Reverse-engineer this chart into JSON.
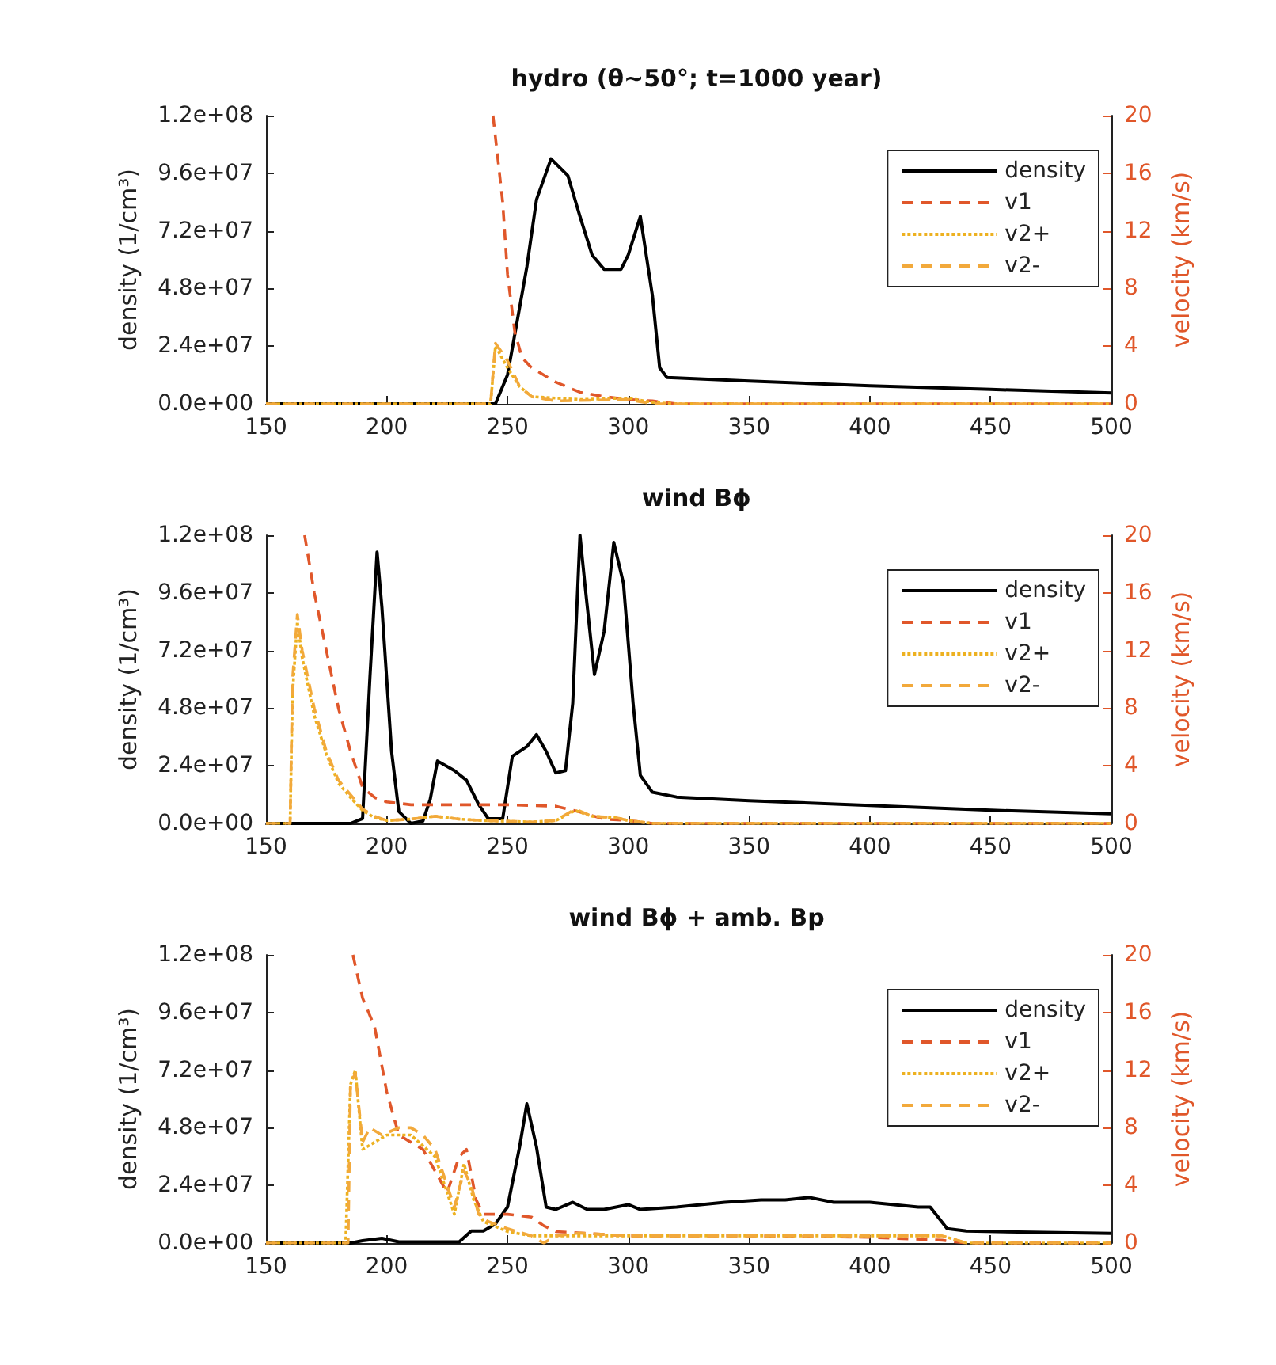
{
  "chart_data": [
    {
      "type": "line",
      "title": "hydro (θ~50°; t=1000 year)",
      "ylabel": "density (1/cm³)",
      "y2label": "velocity (km/s)",
      "xlim": [
        150,
        500
      ],
      "xticks": [
        150,
        200,
        250,
        300,
        350,
        400,
        450,
        500
      ],
      "ylim": [
        0,
        120000000
      ],
      "yticks": [
        {
          "value": 0,
          "label": "0.0e+00"
        },
        {
          "value": 24000000,
          "label": "2.4e+07"
        },
        {
          "value": 48000000,
          "label": "4.8e+07"
        },
        {
          "value": 72000000,
          "label": "7.2e+07"
        },
        {
          "value": 96000000,
          "label": "9.6e+07"
        },
        {
          "value": 120000000,
          "label": "1.2e+08"
        }
      ],
      "y2lim": [
        0,
        20
      ],
      "y2ticks": [
        0,
        4,
        8,
        12,
        16,
        20
      ],
      "legend": "top right",
      "marker": "none",
      "series": [
        {
          "name": "density",
          "color": "#000000",
          "line_style": "solid",
          "x": [
            150,
            245,
            250,
            255,
            258,
            262,
            268,
            275,
            280,
            285,
            290,
            297,
            300,
            305,
            310,
            313,
            316,
            350,
            400,
            450,
            500
          ],
          "values": [
            0,
            0,
            12000000,
            40000000,
            57000000,
            85000000,
            102000000,
            95000000,
            78000000,
            62000000,
            56000000,
            56000000,
            62000000,
            78000000,
            45000000,
            15000000,
            11000000,
            9500000,
            7500000,
            6000000,
            4500000
          ]
        },
        {
          "name": "v1",
          "color": "#e0572a",
          "line_style": "dashed",
          "axis": "y2",
          "x": [
            244,
            248,
            250,
            253,
            256,
            260,
            270,
            280,
            290,
            300,
            310,
            320,
            500
          ],
          "values": [
            20,
            14,
            9,
            5,
            3.2,
            2.5,
            1.5,
            0.8,
            0.5,
            0.3,
            0.2,
            0,
            0
          ]
        },
        {
          "name": "v2+",
          "color": "#edb120",
          "line_style": "dotted",
          "axis": "y2",
          "x": [
            150,
            243,
            245,
            250,
            255,
            260,
            280,
            300,
            310,
            320,
            500
          ],
          "values": [
            0,
            0,
            4,
            2.5,
            1.2,
            0.5,
            0.3,
            0.4,
            0.1,
            0,
            0
          ]
        },
        {
          "name": "v2-",
          "color": "#f2a93b",
          "line_style": "dashed",
          "axis": "y2",
          "x": [
            150,
            243,
            245,
            250,
            255,
            260,
            270,
            300,
            310,
            500
          ],
          "values": [
            0,
            0,
            4.2,
            3,
            1.2,
            0.5,
            0.2,
            0.3,
            0,
            0
          ]
        }
      ]
    },
    {
      "type": "line",
      "title": "wind Bϕ",
      "ylabel": "density (1/cm³)",
      "y2label": "velocity (km/s)",
      "xlim": [
        150,
        500
      ],
      "xticks": [
        150,
        200,
        250,
        300,
        350,
        400,
        450,
        500
      ],
      "ylim": [
        0,
        120000000
      ],
      "yticks": [
        {
          "value": 0,
          "label": "0.0e+00"
        },
        {
          "value": 24000000,
          "label": "2.4e+07"
        },
        {
          "value": 48000000,
          "label": "4.8e+07"
        },
        {
          "value": 72000000,
          "label": "7.2e+07"
        },
        {
          "value": 96000000,
          "label": "9.6e+07"
        },
        {
          "value": 120000000,
          "label": "1.2e+08"
        }
      ],
      "y2lim": [
        0,
        20
      ],
      "y2ticks": [
        0,
        4,
        8,
        12,
        16,
        20
      ],
      "legend": "top right",
      "marker": "none",
      "series": [
        {
          "name": "density",
          "color": "#000000",
          "line_style": "solid",
          "x": [
            150,
            185,
            190,
            193,
            196,
            198,
            202,
            205,
            210,
            215,
            218,
            221,
            228,
            233,
            238,
            242,
            248,
            252,
            258,
            262,
            266,
            270,
            274,
            277,
            280,
            282,
            286,
            290,
            294,
            298,
            302,
            305,
            310,
            320,
            350,
            400,
            450,
            500
          ],
          "values": [
            0,
            0,
            2000000,
            60000000,
            113000000,
            90000000,
            30000000,
            5000000,
            0,
            1000000,
            10000000,
            26000000,
            22000000,
            18000000,
            8000000,
            2000000,
            2000000,
            28000000,
            32000000,
            37000000,
            30000000,
            21000000,
            22000000,
            50000000,
            120000000,
            100000000,
            62000000,
            80000000,
            117000000,
            100000000,
            50000000,
            20000000,
            13000000,
            11000000,
            9500000,
            7500000,
            5500000,
            4000000
          ]
        },
        {
          "name": "v1",
          "color": "#e0572a",
          "line_style": "dashed",
          "axis": "y2",
          "x": [
            166,
            170,
            175,
            180,
            185,
            190,
            195,
            200,
            210,
            230,
            250,
            270,
            280,
            290,
            300,
            310,
            500
          ],
          "values": [
            20,
            16,
            12,
            8,
            5,
            2.5,
            1.8,
            1.5,
            1.3,
            1.3,
            1.3,
            1.2,
            0.8,
            0.3,
            0.2,
            0,
            0
          ]
        },
        {
          "name": "v2+",
          "color": "#edb120",
          "line_style": "dotted",
          "axis": "y2",
          "x": [
            150,
            160,
            161,
            163,
            165,
            170,
            175,
            180,
            185,
            190,
            195,
            200,
            210,
            220,
            230,
            240,
            260,
            270,
            278,
            285,
            295,
            300,
            310,
            500
          ],
          "values": [
            0,
            0,
            9,
            14,
            11.5,
            7.5,
            4.8,
            2.8,
            1.8,
            0.9,
            0.4,
            0.2,
            0.3,
            0.5,
            0.3,
            0.2,
            0.1,
            0.2,
            0.9,
            0.5,
            0.4,
            0.2,
            0,
            0
          ]
        },
        {
          "name": "v2-",
          "color": "#f2a93b",
          "line_style": "dashed",
          "axis": "y2",
          "x": [
            150,
            160,
            161,
            163,
            165,
            170,
            175,
            180,
            185,
            190,
            195,
            200,
            210,
            220,
            230,
            240,
            260,
            270,
            278,
            285,
            295,
            300,
            310,
            500
          ],
          "values": [
            0,
            0,
            10,
            14.5,
            12,
            8,
            5,
            3,
            2,
            1,
            0.5,
            0.2,
            0.3,
            0.5,
            0.3,
            0.2,
            0.1,
            0.2,
            1,
            0.5,
            0.4,
            0.2,
            0,
            0
          ]
        }
      ]
    },
    {
      "type": "line",
      "title": "wind Bϕ + amb. Bp",
      "ylabel": "density (1/cm³)",
      "y2label": "velocity (km/s)",
      "xlim": [
        150,
        500
      ],
      "xticks": [
        150,
        200,
        250,
        300,
        350,
        400,
        450,
        500
      ],
      "ylim": [
        0,
        120000000
      ],
      "yticks": [
        {
          "value": 0,
          "label": "0.0e+00"
        },
        {
          "value": 24000000,
          "label": "2.4e+07"
        },
        {
          "value": 48000000,
          "label": "4.8e+07"
        },
        {
          "value": 72000000,
          "label": "7.2e+07"
        },
        {
          "value": 96000000,
          "label": "9.6e+07"
        },
        {
          "value": 120000000,
          "label": "1.2e+08"
        }
      ],
      "y2lim": [
        0,
        20
      ],
      "y2ticks": [
        0,
        4,
        8,
        12,
        16,
        20
      ],
      "legend": "top right",
      "marker": "none",
      "series": [
        {
          "name": "density",
          "color": "#000000",
          "line_style": "solid",
          "x": [
            150,
            185,
            190,
            198,
            205,
            230,
            235,
            240,
            245,
            250,
            255,
            258,
            262,
            266,
            270,
            277,
            283,
            290,
            300,
            305,
            320,
            340,
            355,
            365,
            375,
            385,
            400,
            420,
            425,
            432,
            440,
            500
          ],
          "values": [
            0,
            0,
            1000000,
            2000000,
            500000,
            500000,
            5000000,
            5000000,
            8000000,
            15000000,
            40000000,
            58000000,
            40000000,
            15000000,
            14000000,
            17000000,
            14000000,
            14000000,
            16000000,
            14000000,
            15000000,
            17000000,
            18000000,
            18000000,
            19000000,
            17000000,
            17000000,
            15000000,
            15000000,
            6000000,
            5000000,
            4000000
          ]
        },
        {
          "name": "v1",
          "color": "#e0572a",
          "line_style": "dashed",
          "axis": "y2",
          "x": [
            186,
            190,
            195,
            200,
            205,
            210,
            215,
            220,
            225,
            230,
            233,
            237,
            240,
            250,
            260,
            265,
            270,
            280,
            300,
            350,
            400,
            430,
            440,
            500
          ],
          "values": [
            20,
            17,
            15,
            10.5,
            7.5,
            7,
            6.5,
            5,
            3.5,
            6,
            6.5,
            3,
            2,
            2,
            1.8,
            1.2,
            0.8,
            0.7,
            0.5,
            0.5,
            0.4,
            0.2,
            0,
            0
          ]
        },
        {
          "name": "v2+",
          "color": "#edb120",
          "line_style": "dotted",
          "axis": "y2",
          "x": [
            150,
            183,
            185,
            187,
            190,
            195,
            200,
            210,
            220,
            225,
            228,
            232,
            236,
            240,
            250,
            260,
            280,
            430,
            440,
            500
          ],
          "values": [
            0,
            0,
            11,
            12,
            6.5,
            7,
            7.5,
            7.5,
            6,
            3.5,
            2,
            5.5,
            3,
            1.5,
            0.8,
            0.5,
            0.5,
            0.5,
            0,
            0
          ]
        },
        {
          "name": "v2-",
          "color": "#f2a93b",
          "line_style": "dashed",
          "axis": "y2",
          "x": [
            150,
            184,
            185,
            187,
            190,
            193,
            198,
            205,
            210,
            215,
            220,
            225,
            228,
            232,
            235,
            238,
            242,
            250,
            260,
            265,
            270,
            280,
            300,
            430,
            440,
            500
          ],
          "values": [
            0,
            0,
            11,
            11.8,
            7,
            8,
            7.5,
            8,
            8,
            7.5,
            6.5,
            4,
            2.5,
            5,
            4,
            2,
            1.5,
            1,
            0.5,
            0,
            0.5,
            0.7,
            0.5,
            0.5,
            0,
            0
          ]
        }
      ]
    }
  ]
}
